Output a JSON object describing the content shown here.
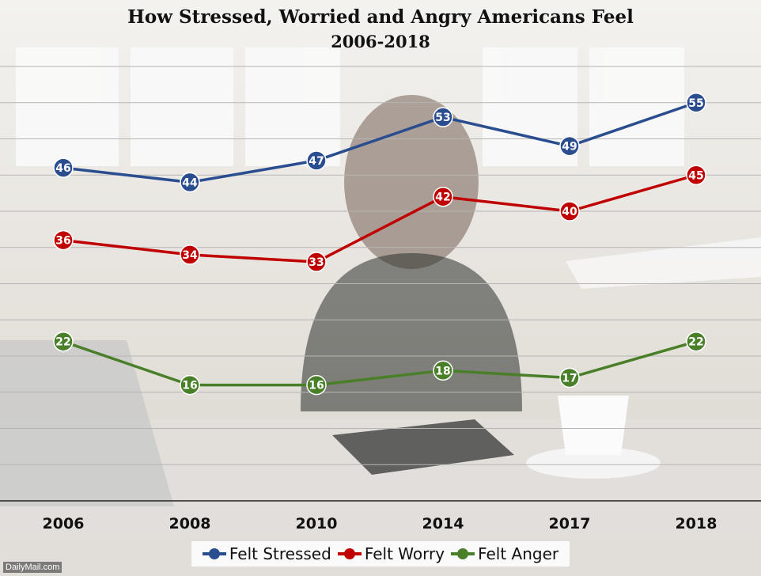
{
  "title": "How Stressed, Worried and Angry Americans Feel",
  "subtitle": "2006-2018",
  "watermark": "DailyMail.com",
  "chart_data": {
    "type": "line",
    "title": "How Stressed, Worried and Angry Americans Feel",
    "subtitle": "2006-2018",
    "categories": [
      "2006",
      "2008",
      "2010",
      "2014",
      "2017",
      "2018"
    ],
    "ylim": [
      0,
      60
    ],
    "grid": true,
    "legend_position": "bottom",
    "series": [
      {
        "name": "Felt Stressed",
        "color": "#2a4d8f",
        "values": [
          46,
          44,
          47,
          53,
          49,
          55
        ]
      },
      {
        "name": "Felt Worry",
        "color": "#c00000",
        "values": [
          36,
          34,
          33,
          42,
          40,
          45
        ]
      },
      {
        "name": "Felt Anger",
        "color": "#4a7f2a",
        "values": [
          22,
          16,
          16,
          18,
          17,
          22
        ]
      }
    ]
  }
}
